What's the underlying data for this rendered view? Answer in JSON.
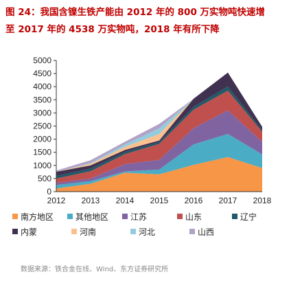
{
  "title_line1": "图 24：我国含镍生铁产能由 2012 年的 800 万实物吨快速增",
  "title_line2": "至 2017 年的 4538 万实物吨，2018 年有所下降",
  "source": "数据来源：铁合金在线、Wind、东方证券研究所",
  "chart_data": {
    "type": "area",
    "stacked": true,
    "title": "",
    "xlabel": "",
    "ylabel": "",
    "x": [
      "2012",
      "2013",
      "2014",
      "2015",
      "2016",
      "2017",
      "2018"
    ],
    "ylim": [
      0,
      5000
    ],
    "yticks": [
      0,
      500,
      1000,
      1500,
      2000,
      2500,
      3000,
      3500,
      4000,
      4500,
      5000
    ],
    "grid": false,
    "legend_position": "bottom",
    "series": [
      {
        "name": "南方地区",
        "color": "#F79646",
        "values": [
          120,
          300,
          720,
          660,
          1020,
          1320,
          900
        ]
      },
      {
        "name": "其他地区",
        "color": "#4BACC6",
        "values": [
          130,
          100,
          50,
          180,
          780,
          880,
          520
        ]
      },
      {
        "name": "江苏",
        "color": "#8064A2",
        "values": [
          80,
          100,
          280,
          370,
          620,
          900,
          480
        ]
      },
      {
        "name": "山东",
        "color": "#C0504D",
        "values": [
          170,
          280,
          380,
          610,
          700,
          750,
          380
        ]
      },
      {
        "name": "辽宁",
        "color": "#215968",
        "values": [
          100,
          100,
          80,
          70,
          110,
          160,
          60
        ]
      },
      {
        "name": "内蒙",
        "color": "#403151",
        "values": [
          160,
          120,
          80,
          60,
          310,
          528,
          130
        ]
      },
      {
        "name": "河南",
        "color": "#FAC090",
        "values": [
          0,
          60,
          120,
          250,
          0,
          0,
          0
        ]
      },
      {
        "name": "河北",
        "color": "#93CDDD",
        "values": [
          0,
          30,
          90,
          210,
          0,
          0,
          0
        ]
      },
      {
        "name": "山西",
        "color": "#B3A2C7",
        "values": [
          40,
          110,
          100,
          170,
          0,
          0,
          0
        ]
      }
    ]
  }
}
